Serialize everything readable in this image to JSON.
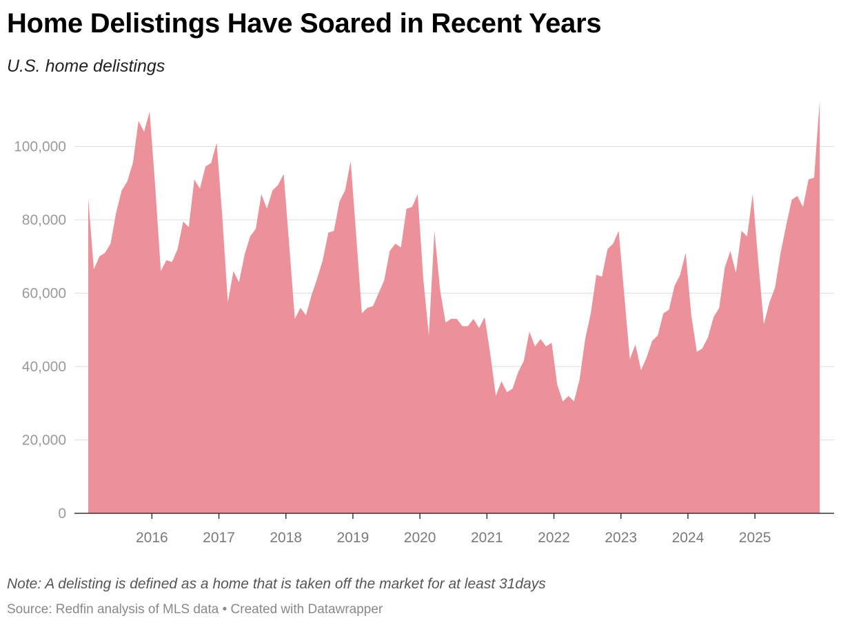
{
  "header": {
    "title": "Home Delistings Have Soared in Recent Years",
    "subtitle": "U.S. home delistings"
  },
  "footer": {
    "note": "Note: A delisting is defined as a home that is taken off the market for at least 31days",
    "source": "Source: Redfin analysis of MLS data • Created with Datawrapper"
  },
  "colors": {
    "area": "#ec9199",
    "grid": "#dddddd",
    "axis": "#333333"
  },
  "chart_data": {
    "type": "area",
    "title": "Home Delistings Have Soared in Recent Years",
    "subtitle": "U.S. home delistings",
    "xlabel": "",
    "ylabel": "",
    "ylim": [
      0,
      115000
    ],
    "y_ticks": [
      0,
      20000,
      40000,
      60000,
      80000,
      100000
    ],
    "y_tick_labels": [
      "0",
      "20,000",
      "40,000",
      "60,000",
      "80,000",
      "100,000"
    ],
    "x_tick_labels": [
      "2016",
      "2017",
      "2018",
      "2019",
      "2020",
      "2021",
      "2022",
      "2023",
      "2024",
      "2025"
    ],
    "grid": true,
    "x_start": "2015-01",
    "x_end": "2025-12",
    "series": [
      {
        "values": [
          86000,
          66500,
          70000,
          71000,
          73500,
          82000,
          88000,
          90500,
          95500,
          107000,
          104000,
          109500,
          89000,
          66000,
          69000,
          68500,
          72000,
          79500,
          78000,
          91000,
          88500,
          94500,
          95500,
          101000,
          81000,
          57500,
          66000,
          63000,
          70500,
          75500,
          77500,
          87000,
          83000,
          88000,
          89500,
          92500,
          73000,
          53000,
          56000,
          54000,
          59500,
          64000,
          69000,
          76500,
          77000,
          85000,
          88000,
          96000,
          75500,
          54500,
          56000,
          56500,
          60000,
          63500,
          71500,
          73500,
          72500,
          83000,
          83500,
          87000,
          64000,
          48500,
          77000,
          61000,
          52000,
          53000,
          53000,
          51000,
          51000,
          53000,
          50500,
          53500,
          43500,
          32000,
          36000,
          33000,
          34000,
          38500,
          41500,
          49500,
          45500,
          47500,
          45500,
          46500,
          35000,
          30500,
          32000,
          30500,
          36500,
          47500,
          54500,
          65000,
          64500,
          72000,
          73500,
          77000,
          59500,
          42000,
          46000,
          39000,
          42500,
          47000,
          48500,
          54500,
          55500,
          62000,
          65000,
          71000,
          54000,
          44000,
          45000,
          48000,
          53500,
          56000,
          67000,
          71500,
          65500,
          77000,
          75500,
          87000,
          68500,
          51500,
          57500,
          61500,
          71000,
          78500,
          85500,
          86500,
          83500,
          91000,
          91500,
          112500
        ]
      }
    ]
  }
}
